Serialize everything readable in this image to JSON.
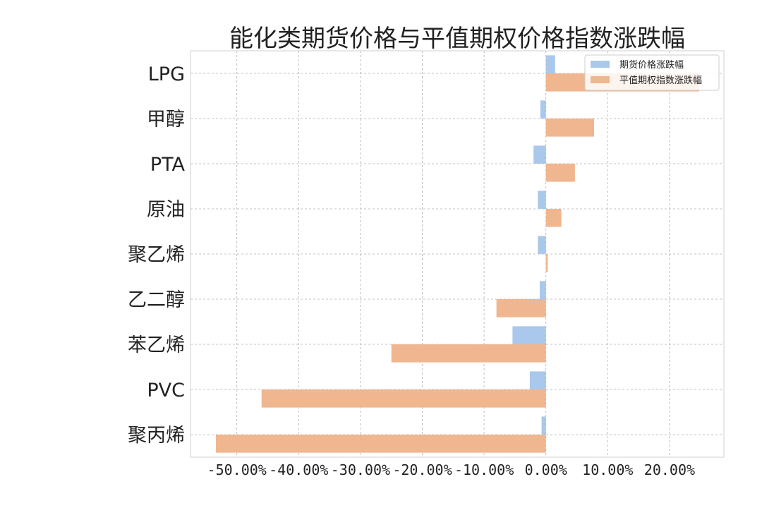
{
  "chart_data": {
    "type": "bar",
    "orientation": "horizontal",
    "title": "能化类期货价格与平值期权价格指数涨跌幅",
    "xlabel": "",
    "ylabel": "",
    "categories": [
      "LPG",
      "甲醇",
      "PTA",
      "原油",
      "聚乙烯",
      "乙二醇",
      "苯乙烯",
      "PVC",
      "聚丙烯"
    ],
    "series": [
      {
        "name": "期货价格涨跌幅",
        "color": "#a9c8eb",
        "values": [
          1.5,
          -0.9,
          -2.0,
          -1.3,
          -1.3,
          -1.0,
          -5.4,
          -2.6,
          -0.7
        ]
      },
      {
        "name": "平值期权指数涨跌幅",
        "color": "#f0b68f",
        "values": [
          24.8,
          7.8,
          4.7,
          2.5,
          0.3,
          -8.0,
          -25.0,
          -46.0,
          -53.4
        ]
      }
    ],
    "xlim": [
      -57.5,
      28.8
    ],
    "xticks": [
      -50,
      -40,
      -30,
      -20,
      -10,
      0,
      10,
      20
    ],
    "xtick_labels": [
      "-50.00%",
      "-40.00%",
      "-30.00%",
      "-20.00%",
      "-10.00%",
      "0.00%",
      "10.00%",
      "20.00%"
    ],
    "grid": true,
    "legend_position": "top-right"
  }
}
